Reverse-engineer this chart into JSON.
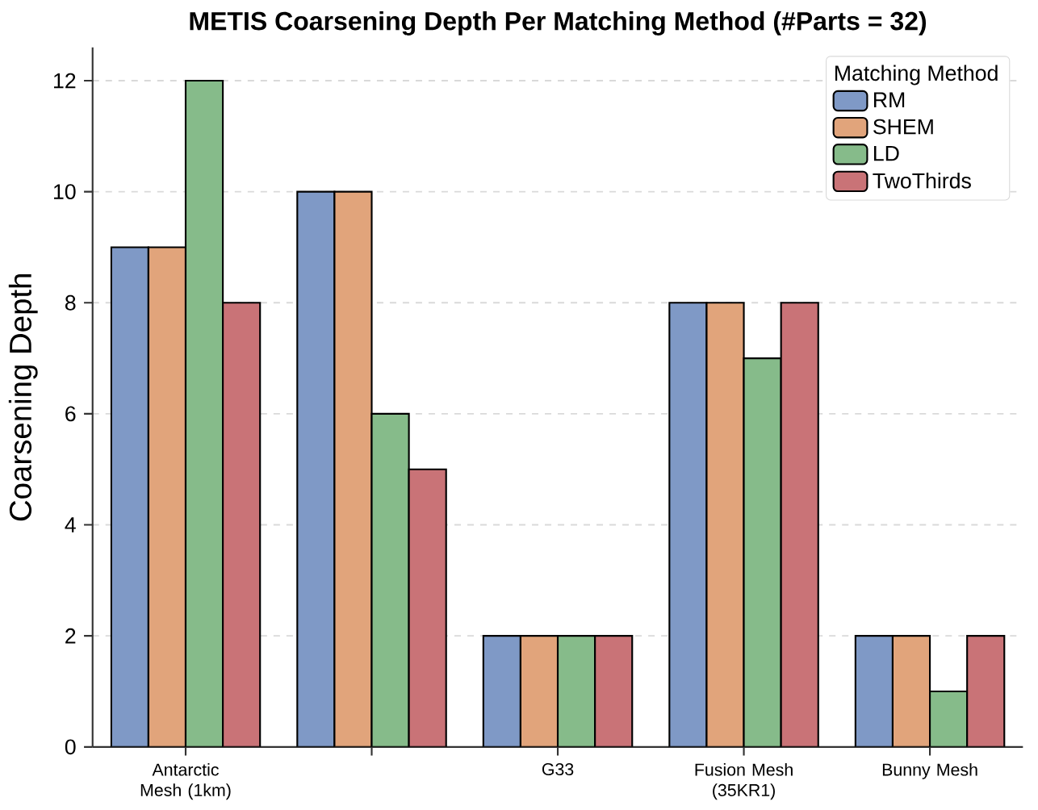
{
  "chart_data": {
    "type": "bar",
    "title": "METIS Coarsening Depth Per Matching Method (#Parts = 32)",
    "ylabel": "Coarsening Depth",
    "categories": [
      "Antarctic Mesh (1km)",
      null,
      "G33",
      "Fusion Mesh (35KR1)",
      "Bunny Mesh"
    ],
    "series": [
      {
        "name": "RM",
        "color": "#7f99c6",
        "values": [
          9,
          10,
          2,
          8,
          2
        ]
      },
      {
        "name": "SHEM",
        "color": "#e1a47b",
        "values": [
          9,
          10,
          2,
          8,
          2
        ]
      },
      {
        "name": "LD",
        "color": "#86bb8a",
        "values": [
          12,
          6,
          2,
          7,
          1
        ]
      },
      {
        "name": "TwoThirds",
        "color": "#c97377",
        "values": [
          8,
          5,
          2,
          8,
          2
        ]
      }
    ],
    "ylim": [
      0,
      12.6
    ],
    "yticks": [
      0,
      2,
      4,
      6,
      8,
      10,
      12
    ],
    "grid": "y",
    "legend": "top right",
    "legend_title": "Matching Method"
  }
}
